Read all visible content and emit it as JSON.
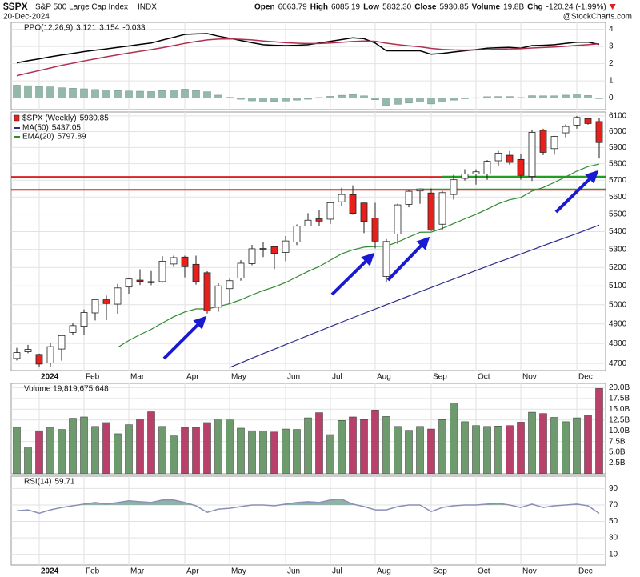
{
  "header": {
    "symbol": "$SPX",
    "name": "S&P 500 Large Cap Index",
    "exchange": "INDX",
    "date": "20-Dec-2024",
    "quote": [
      {
        "label": "Open",
        "value": "6063.79"
      },
      {
        "label": "High",
        "value": "6085.19"
      },
      {
        "label": "Low",
        "value": "5832.30"
      },
      {
        "label": "Close",
        "value": "5930.85"
      },
      {
        "label": "Volume",
        "value": "19.8B"
      },
      {
        "label": "Chg",
        "value": "-120.24 (-1.99%)"
      }
    ],
    "source": "@StockCharts.com"
  },
  "chart_data": [
    {
      "type": "line",
      "title": "PPO(12,26,9)",
      "series": [
        {
          "color": "#000000",
          "values": [
            2.05,
            2.17,
            2.28,
            2.4,
            2.5,
            2.6,
            2.7,
            2.78,
            2.86,
            2.95,
            3.03,
            3.12,
            3.2,
            3.37,
            3.53,
            3.7,
            3.73,
            3.75,
            3.6,
            3.48,
            3.35,
            3.22,
            3.1,
            3.07,
            3.05,
            3.07,
            3.1,
            3.2,
            3.3,
            3.4,
            3.5,
            3.45,
            3.2,
            2.75,
            2.75,
            2.75,
            2.75,
            2.55,
            2.6,
            2.68,
            2.75,
            2.82,
            2.9,
            2.93,
            2.95,
            2.9,
            3.05,
            3.07,
            3.1,
            3.18,
            3.25,
            3.25,
            3.121
          ]
        },
        {
          "color": "#b03050",
          "values": [
            1.3,
            1.45,
            1.6,
            1.75,
            1.9,
            2.03,
            2.16,
            2.28,
            2.4,
            2.51,
            2.62,
            2.72,
            2.82,
            2.93,
            3.05,
            3.18,
            3.29,
            3.38,
            3.43,
            3.44,
            3.42,
            3.38,
            3.32,
            3.27,
            3.22,
            3.19,
            3.17,
            3.17,
            3.2,
            3.24,
            3.29,
            3.32,
            3.3,
            3.19,
            3.11,
            3.04,
            2.98,
            2.89,
            2.83,
            2.8,
            2.79,
            2.8,
            2.82,
            2.84,
            2.86,
            2.87,
            2.91,
            2.94,
            2.97,
            3.01,
            3.06,
            3.1,
            3.154
          ]
        },
        {
          "type": "bar",
          "color": "#94b8aa",
          "legend_color": "#2a9a2a",
          "values": [
            0.75,
            0.72,
            0.68,
            0.65,
            0.6,
            0.57,
            0.54,
            0.5,
            0.46,
            0.44,
            0.41,
            0.4,
            0.38,
            0.44,
            0.48,
            0.52,
            0.44,
            0.37,
            0.17,
            0.04,
            -0.07,
            -0.16,
            -0.22,
            -0.2,
            -0.17,
            -0.12,
            -0.07,
            0.03,
            0.1,
            0.16,
            0.21,
            0.13,
            -0.1,
            -0.44,
            -0.36,
            -0.29,
            -0.23,
            -0.34,
            -0.23,
            -0.12,
            -0.04,
            0.02,
            0.08,
            0.09,
            0.09,
            0.03,
            0.14,
            0.13,
            0.13,
            0.17,
            0.19,
            0.15,
            -0.033
          ]
        }
      ],
      "ylim": [
        -0.67,
        4.4
      ],
      "yticks": [
        0,
        1,
        2,
        3,
        4
      ],
      "grid": true
    },
    {
      "type": "candlestick",
      "title": "$SPX (Weekly)",
      "categories": [
        null,
        null,
        "2024",
        null,
        null,
        null,
        "Feb",
        null,
        null,
        null,
        "Mar",
        null,
        null,
        null,
        null,
        "Apr",
        null,
        null,
        null,
        "May",
        null,
        null,
        null,
        null,
        "Jun",
        null,
        null,
        null,
        "Jul",
        null,
        null,
        null,
        "Aug",
        null,
        null,
        null,
        null,
        "Sep",
        null,
        null,
        null,
        "Oct",
        null,
        null,
        null,
        "Nov",
        null,
        null,
        null,
        null,
        "Dec",
        null,
        null
      ],
      "open": [
        4725,
        4758,
        4745,
        4703,
        4772,
        4856,
        4888,
        4957,
        5026,
        5003,
        5094,
        5131,
        5123,
        5123,
        5219,
        5257,
        5217,
        5171,
        4987,
        5085,
        5142,
        5221,
        5303,
        5315,
        5283,
        5341,
        5432,
        5473,
        5471,
        5572,
        5614,
        5565,
        5477,
        5151,
        5386,
        5557,
        5636,
        5624,
        5442,
        5615,
        5711,
        5737,
        5737,
        5818,
        5852,
        5826,
        5723,
        6008,
        5893,
        5992,
        6041,
        6083,
        6063.79
      ],
      "high": [
        4778,
        4793,
        4749,
        4802,
        4842,
        4907,
        4975,
        5031,
        5048,
        5111,
        5140,
        5190,
        5180,
        5262,
        5265,
        5265,
        5265,
        5179,
        5114,
        5139,
        5240,
        5325,
        5342,
        5315,
        5375,
        5441,
        5506,
        5523,
        5570,
        5655,
        5670,
        5567,
        5566,
        5358,
        5561,
        5643,
        5651,
        5651,
        5636,
        5733,
        5767,
        5767,
        5822,
        5879,
        5878,
        5863,
        6013,
        6018,
        5973,
        6045,
        6099,
        6089,
        6085.19
      ],
      "low": [
        4715,
        4751,
        4682,
        4682,
        4714,
        4845,
        4845,
        4918,
        4920,
        4953,
        5058,
        5105,
        5104,
        5117,
        5203,
        5146,
        5107,
        4954,
        4963,
        5011,
        5128,
        5212,
        5257,
        5191,
        5234,
        5324,
        5430,
        5431,
        5444,
        5546,
        5497,
        5391,
        5305,
        5120,
        5330,
        5540,
        5560,
        5403,
        5406,
        5585,
        5698,
        5674,
        5702,
        5784,
        5794,
        5703,
        5696,
        5853,
        5856,
        5963,
        6018,
        6044,
        5832.3
      ],
      "close": [
        4754,
        4770,
        4697,
        4784,
        4840,
        4891,
        4959,
        5027,
        5006,
        5089,
        5137,
        5124,
        5117,
        5234,
        5254,
        5204,
        5123,
        4967,
        5100,
        5128,
        5223,
        5303,
        5305,
        5278,
        5347,
        5431,
        5465,
        5460,
        5567,
        5615,
        5505,
        5459,
        5346,
        5344,
        5554,
        5634,
        5648,
        5408,
        5626,
        5703,
        5738,
        5751,
        5815,
        5865,
        5808,
        5729,
        5995,
        5870,
        5969,
        6032,
        6090,
        6051,
        5930.85
      ],
      "up_color": "#ffffff",
      "down_color": "#e8201c",
      "series": [
        {
          "name": "MA(50)",
          "color": "#2c2c8c",
          "values": [
            null,
            null,
            null,
            null,
            null,
            null,
            null,
            null,
            null,
            null,
            null,
            null,
            null,
            null,
            null,
            null,
            null,
            null,
            null,
            4680,
            4703,
            4726,
            4749,
            4771,
            4794,
            4817,
            4840,
            4863,
            4886,
            4909,
            4932,
            4955,
            4977,
            5000,
            5023,
            5046,
            5069,
            5091,
            5114,
            5137,
            5160,
            5183,
            5206,
            5229,
            5251,
            5274,
            5297,
            5320,
            5343,
            5366,
            5389,
            5413,
            5437.05
          ]
        },
        {
          "name": "EMA(20)",
          "color": "#2e8b2e",
          "values": [
            null,
            null,
            null,
            null,
            null,
            null,
            null,
            null,
            null,
            4780,
            4815,
            4845,
            4872,
            4905,
            4937,
            4962,
            4978,
            4978,
            4990,
            5005,
            5026,
            5052,
            5075,
            5094,
            5118,
            5148,
            5178,
            5205,
            5240,
            5275,
            5297,
            5312,
            5316,
            5318,
            5341,
            5369,
            5396,
            5397,
            5419,
            5446,
            5473,
            5499,
            5529,
            5561,
            5584,
            5597,
            5635,
            5657,
            5687,
            5720,
            5755,
            5783,
            5797.89
          ]
        }
      ],
      "hlines": [
        {
          "value": 5720,
          "color": "#e02020"
        },
        {
          "value": 5643,
          "color": "#e02020"
        },
        {
          "value": 5722,
          "color": "#22a022",
          "from": 38
        },
        {
          "value": 5645,
          "color": "#22a022",
          "from": 36
        }
      ],
      "log_scale": true,
      "ylim": [
        4665,
        6125
      ],
      "yticks": [
        4700,
        4800,
        4900,
        5000,
        5100,
        5200,
        5300,
        5400,
        5500,
        5600,
        5700,
        5800,
        5900,
        6000,
        6100
      ],
      "grid": true
    },
    {
      "type": "bar",
      "title": "Volume 19,819,675,648",
      "values": [
        10.8,
        6.2,
        10.0,
        10.8,
        10.3,
        12.9,
        13.2,
        11.0,
        11.9,
        9.3,
        11.4,
        12.7,
        14.4,
        11.0,
        8.8,
        10.8,
        10.8,
        11.9,
        12.7,
        12.5,
        10.6,
        10.0,
        9.9,
        9.7,
        10.4,
        10.3,
        13.0,
        14.2,
        9.1,
        12.4,
        13.2,
        12.6,
        14.8,
        13.3,
        11.0,
        10.1,
        11.0,
        10.4,
        12.6,
        16.4,
        12.1,
        11.2,
        11.0,
        11.1,
        11.2,
        12.0,
        14.3,
        14.0,
        13.1,
        12.1,
        13.0,
        13.6,
        19.82
      ],
      "up_color": "#6d9b6d",
      "down_color": "#b8406a",
      "ylim": [
        0,
        21
      ],
      "yticks": [
        {
          "value": 2.5,
          "label": "2.5B"
        },
        {
          "value": 5,
          "label": "5.0B"
        },
        {
          "value": 7.5,
          "label": "7.5B"
        },
        {
          "value": 10,
          "label": "10.0B"
        },
        {
          "value": 12.5,
          "label": "12.5B"
        },
        {
          "value": 15,
          "label": "15.0B"
        },
        {
          "value": 17.5,
          "label": "17.5B"
        },
        {
          "value": 20,
          "label": "20.0B"
        }
      ],
      "grid": true
    },
    {
      "type": "line",
      "title": "RSI(14)",
      "categories": [
        null,
        null,
        "2024",
        null,
        null,
        null,
        "Feb",
        null,
        null,
        null,
        "Mar",
        null,
        null,
        null,
        null,
        "Apr",
        null,
        null,
        null,
        "May",
        null,
        null,
        null,
        null,
        "Jun",
        null,
        null,
        null,
        "Jul",
        null,
        null,
        null,
        "Aug",
        null,
        null,
        null,
        null,
        "Sep",
        null,
        null,
        null,
        "Oct",
        null,
        null,
        null,
        "Nov",
        null,
        null,
        null,
        null,
        "Dec",
        null,
        null
      ],
      "values": [
        63,
        64,
        60,
        64,
        67,
        69,
        71,
        73,
        71,
        73,
        75,
        74,
        73,
        76,
        76,
        73,
        69,
        61,
        65,
        66,
        68,
        70,
        70,
        69,
        71,
        73,
        74,
        73,
        76,
        77,
        71,
        68,
        64,
        64,
        68,
        70,
        70,
        62,
        67,
        69,
        70,
        70,
        71,
        72,
        70,
        67,
        71,
        67,
        69,
        70,
        71,
        69,
        59.71
      ],
      "color": "#8a8fb8",
      "fill_above": 70,
      "fill_color": "#8fb3a6",
      "ylim": [
        -3,
        105
      ],
      "yticks": [
        10,
        30,
        50,
        70,
        90
      ],
      "grid": true
    }
  ]
}
